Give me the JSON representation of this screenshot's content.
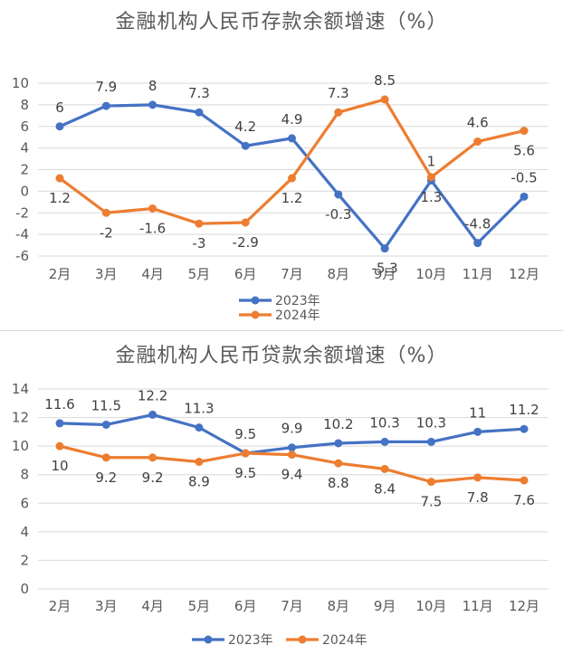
{
  "colors": {
    "series_2023": "#4472C4",
    "series_2024": "#ED7D31",
    "grid": "#d9d9d9",
    "text": "#595959"
  },
  "chart_data": [
    {
      "type": "line",
      "title": "金融机构人民币存款余额增速（%）",
      "categories": [
        "2月",
        "3月",
        "4月",
        "5月",
        "6月",
        "7月",
        "8月",
        "9月",
        "10月",
        "11月",
        "12月"
      ],
      "series": [
        {
          "name": "2023年",
          "values": [
            6,
            7.9,
            8,
            7.3,
            4.2,
            4.9,
            -0.3,
            -5.3,
            1,
            -4.8,
            -0.5
          ]
        },
        {
          "name": "2024年",
          "values": [
            1.2,
            -2,
            -1.6,
            -3,
            -2.9,
            1.2,
            7.3,
            8.5,
            1.3,
            4.6,
            5.6
          ]
        }
      ],
      "ylim": [
        -6,
        10
      ],
      "yticks": [
        -6,
        -4,
        -2,
        0,
        2,
        4,
        6,
        8,
        10
      ],
      "grid": true,
      "legend": "bottom"
    },
    {
      "type": "line",
      "title": "金融机构人民币贷款余额增速（%）",
      "categories": [
        "2月",
        "3月",
        "4月",
        "5月",
        "6月",
        "7月",
        "8月",
        "9月",
        "10月",
        "11月",
        "12月"
      ],
      "series": [
        {
          "name": "2023年",
          "values": [
            11.6,
            11.5,
            12.2,
            11.3,
            9.5,
            9.9,
            10.2,
            10.3,
            10.3,
            11,
            11.2
          ]
        },
        {
          "name": "2024年",
          "values": [
            10,
            9.2,
            9.2,
            8.9,
            9.5,
            9.4,
            8.8,
            8.4,
            7.5,
            7.8,
            7.6
          ]
        }
      ],
      "ylim": [
        0,
        14
      ],
      "yticks": [
        0,
        2,
        4,
        6,
        8,
        10,
        12,
        14
      ],
      "grid": true,
      "legend": "bottom"
    }
  ]
}
